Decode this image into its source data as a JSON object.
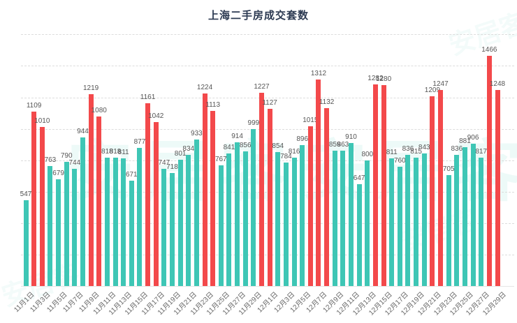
{
  "title": "上海二手房成交套数",
  "watermark": "安居客",
  "colors": {
    "teal_bar": "#3ec6b5",
    "red_bar": "#f3494b",
    "title_text": "#2c3a52",
    "value_label_text": "#555555",
    "axis_label_text": "#666666",
    "gridline": "#dcdcdc"
  },
  "chart_data": {
    "type": "bar",
    "title": "上海二手房成交套数",
    "x": [
      "11月1日",
      "11月2日",
      "11月3日",
      "11月4日",
      "11月5日",
      "11月6日",
      "11月7日",
      "11月8日",
      "11月9日",
      "11月10日",
      "11月11日",
      "11月12日",
      "11月13日",
      "11月14日",
      "11月15日",
      "11月16日",
      "11月17日",
      "11月18日",
      "11月19日",
      "11月20日",
      "11月21日",
      "11月22日",
      "11月23日",
      "11月24日",
      "11月25日",
      "11月26日",
      "11月27日",
      "11月28日",
      "11月29日",
      "11月30日",
      "12月1日",
      "12月2日",
      "12月3日",
      "12月4日",
      "12月5日",
      "12月6日",
      "12月7日",
      "12月8日",
      "12月9日",
      "12月10日",
      "12月11日",
      "12月12日",
      "12月13日",
      "12月14日",
      "12月15日",
      "12月16日",
      "12月17日",
      "12月18日",
      "12月19日",
      "12月20日",
      "12月21日",
      "12月22日",
      "12月23日",
      "12月24日",
      "12月25日",
      "12月26日",
      "12月27日",
      "12月28日",
      "12月29日"
    ],
    "values": [
      547,
      1109,
      1010,
      763,
      679,
      790,
      744,
      944,
      1219,
      1080,
      818,
      818,
      811,
      671,
      877,
      1161,
      1042,
      747,
      718,
      801,
      834,
      933,
      1224,
      1113,
      767,
      841,
      914,
      856,
      999,
      1227,
      1127,
      854,
      784,
      816,
      896,
      1015,
      1312,
      1132,
      859,
      863,
      910,
      647,
      800,
      1282,
      1280,
      811,
      760,
      836,
      815,
      843,
      1209,
      1247,
      705,
      836,
      881,
      906,
      817,
      1466,
      1248
    ],
    "color_rule": "red if value >= 1000 else teal",
    "data_labels_visible": true,
    "xlabel": "",
    "ylabel": "",
    "ylim": [
      0,
      1600
    ],
    "grid_interval": 200,
    "grid": "horizontal-dashed",
    "y_axis_tick_labels_visible": false,
    "x_axis_label_interval": 2,
    "x_axis_label_rotation_deg": 45,
    "legend": "none",
    "axis_tick_labels_shown": [
      "11月1日",
      "11月3日",
      "11月5日",
      "11月7日",
      "11月9日",
      "11月11日",
      "11月13日",
      "11月15日",
      "11月17日",
      "11月19日",
      "11月21日",
      "11月23日",
      "11月25日",
      "11月27日",
      "11月29日",
      "12月1日",
      "12月3日",
      "12月5日",
      "12月7日",
      "12月9日",
      "12月11日",
      "12月13日",
      "12月15日",
      "12月17日",
      "12月19日",
      "12月21日",
      "12月23日",
      "12月25日",
      "12月27日",
      "12月29日"
    ]
  }
}
